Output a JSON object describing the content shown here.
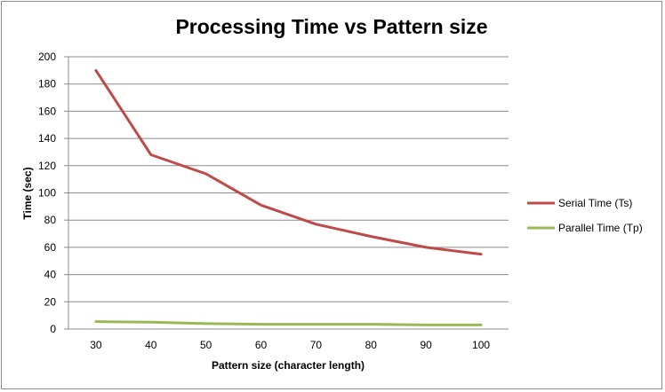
{
  "chart_data": {
    "type": "line",
    "title": "Processing Time vs Pattern size",
    "xlabel": "Pattern size (character  length)",
    "ylabel": "Time (sec)",
    "x_ticks": [
      "30",
      "40",
      "50",
      "60",
      "70",
      "80",
      "90",
      "100"
    ],
    "y_ticks": [
      "0",
      "20",
      "40",
      "60",
      "80",
      "100",
      "120",
      "140",
      "160",
      "180",
      "200"
    ],
    "xlim": [
      25,
      105
    ],
    "ylim": [
      0,
      200
    ],
    "grid": true,
    "legend_position": "right",
    "x": [
      30,
      40,
      50,
      60,
      70,
      80,
      90,
      100
    ],
    "series": [
      {
        "name": "Serial Time  (Ts)",
        "color": "#be4b48",
        "values": [
          190,
          128,
          114,
          91,
          77,
          68,
          60,
          55
        ]
      },
      {
        "name": "Parallel Time  (Tp)",
        "color": "#98b954",
        "values": [
          5.5,
          5,
          4,
          3.5,
          3.5,
          3.5,
          3,
          3
        ]
      }
    ]
  }
}
